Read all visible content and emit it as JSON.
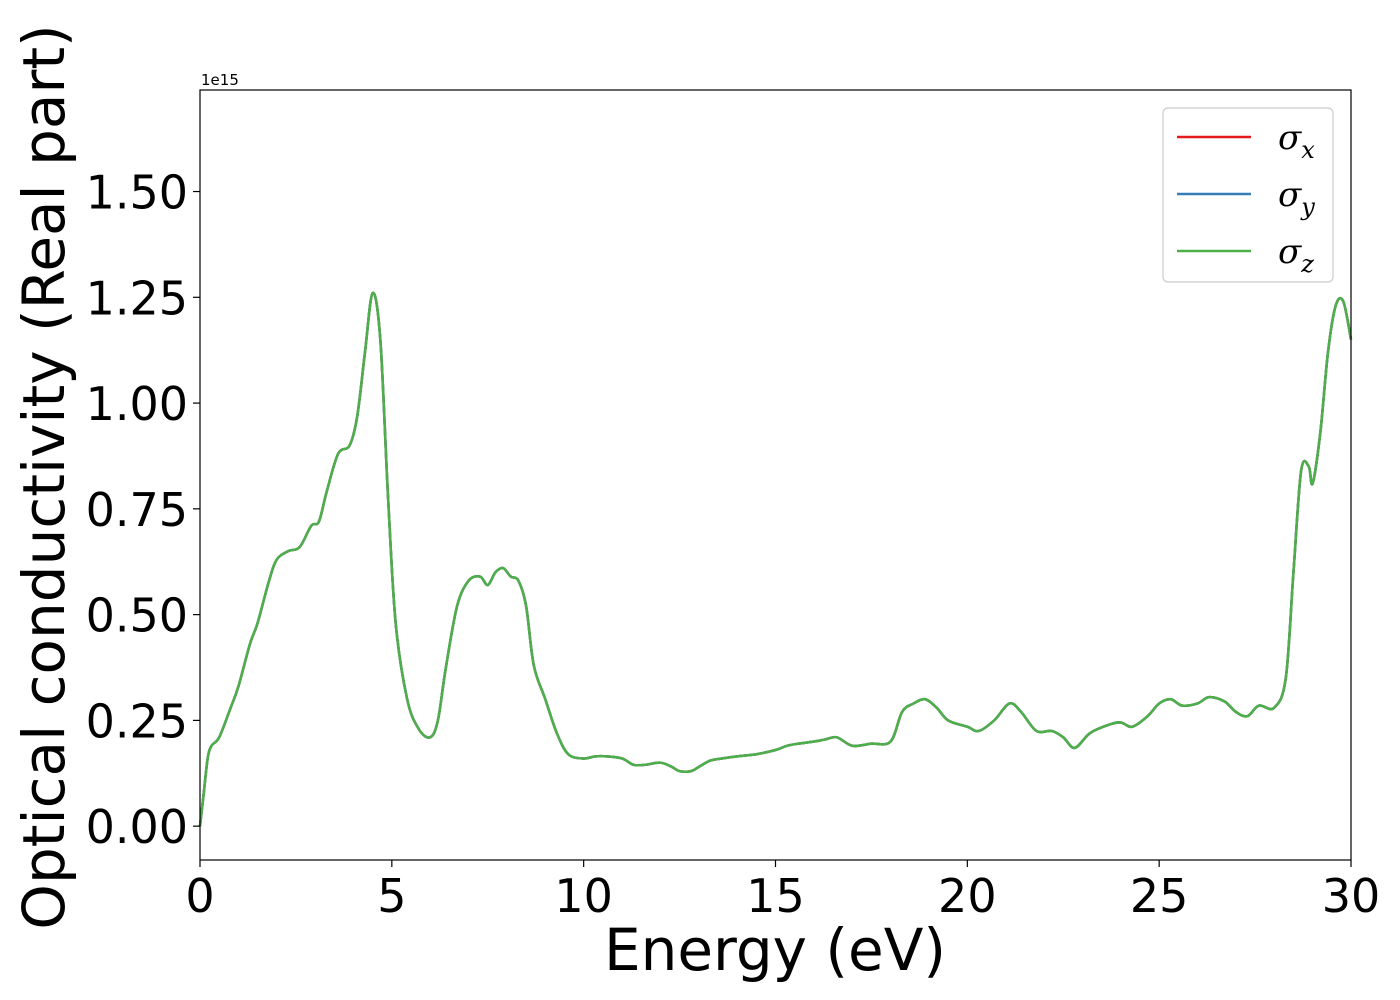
{
  "chart_data": {
    "type": "line",
    "title": "",
    "xlabel": "Energy (eV)",
    "ylabel": "Optical conductivity (Real part)",
    "y_offset_label": "1e15",
    "xlim": [
      0,
      30
    ],
    "ylim": [
      -0.08,
      1.74
    ],
    "x_ticks": [
      0,
      5,
      10,
      15,
      20,
      25,
      30
    ],
    "x_tick_labels": [
      "0",
      "5",
      "10",
      "15",
      "20",
      "25",
      "30"
    ],
    "y_ticks": [
      0.0,
      0.25,
      0.5,
      0.75,
      1.0,
      1.25,
      1.5
    ],
    "y_tick_labels": [
      "0.00",
      "0.25",
      "0.50",
      "0.75",
      "1.00",
      "1.25",
      "1.50"
    ],
    "grid": false,
    "legend_position": "top-right",
    "series": [
      {
        "name": "σx",
        "symbol": "σ",
        "subscript": "x",
        "color": "#e41a1c",
        "x": [
          0,
          0.1,
          0.2,
          0.3,
          0.5,
          0.8,
          1.0,
          1.3,
          1.5,
          1.8,
          2.0,
          2.3,
          2.6,
          2.9,
          3.1,
          3.3,
          3.6,
          3.9,
          4.1,
          4.3,
          4.5,
          4.7,
          4.9,
          5.1,
          5.4,
          5.7,
          6.0,
          6.2,
          6.4,
          6.7,
          7.0,
          7.3,
          7.5,
          7.7,
          7.9,
          8.1,
          8.3,
          8.5,
          8.7,
          9.0,
          9.3,
          9.6,
          10.0,
          10.3,
          10.6,
          11.0,
          11.3,
          11.6,
          12.0,
          12.3,
          12.5,
          12.8,
          13.0,
          13.3,
          13.6,
          14.0,
          14.5,
          15.0,
          15.3,
          15.6,
          16.0,
          16.3,
          16.6,
          17.0,
          17.5,
          18.0,
          18.3,
          18.6,
          18.9,
          19.2,
          19.5,
          20.0,
          20.3,
          20.7,
          21.1,
          21.4,
          21.8,
          22.2,
          22.5,
          22.8,
          23.2,
          23.7,
          24.0,
          24.3,
          24.7,
          25.0,
          25.3,
          25.6,
          26.0,
          26.3,
          26.7,
          27.0,
          27.3,
          27.6,
          28.0,
          28.3,
          28.5,
          28.7,
          28.9,
          29.0,
          29.2,
          29.4,
          29.6,
          29.8,
          30.0
        ],
        "y": [
          0.0,
          0.08,
          0.16,
          0.19,
          0.21,
          0.28,
          0.33,
          0.43,
          0.48,
          0.58,
          0.63,
          0.65,
          0.66,
          0.71,
          0.72,
          0.79,
          0.88,
          0.9,
          0.97,
          1.12,
          1.26,
          1.15,
          0.78,
          0.48,
          0.3,
          0.23,
          0.21,
          0.25,
          0.37,
          0.52,
          0.58,
          0.59,
          0.57,
          0.6,
          0.61,
          0.59,
          0.58,
          0.52,
          0.38,
          0.3,
          0.22,
          0.17,
          0.16,
          0.165,
          0.165,
          0.16,
          0.145,
          0.145,
          0.15,
          0.14,
          0.13,
          0.13,
          0.14,
          0.155,
          0.16,
          0.165,
          0.17,
          0.18,
          0.19,
          0.195,
          0.2,
          0.205,
          0.21,
          0.19,
          0.195,
          0.2,
          0.27,
          0.29,
          0.3,
          0.28,
          0.25,
          0.235,
          0.225,
          0.25,
          0.29,
          0.27,
          0.225,
          0.225,
          0.21,
          0.185,
          0.22,
          0.24,
          0.245,
          0.235,
          0.26,
          0.29,
          0.3,
          0.285,
          0.29,
          0.305,
          0.295,
          0.27,
          0.26,
          0.285,
          0.28,
          0.35,
          0.6,
          0.84,
          0.85,
          0.81,
          0.93,
          1.12,
          1.23,
          1.24,
          1.15
        ]
      },
      {
        "name": "σy",
        "symbol": "σ",
        "subscript": "y",
        "color": "#377eb8",
        "x": [
          0,
          0.1,
          0.2,
          0.3,
          0.5,
          0.8,
          1.0,
          1.3,
          1.5,
          1.8,
          2.0,
          2.3,
          2.6,
          2.9,
          3.1,
          3.3,
          3.6,
          3.9,
          4.1,
          4.3,
          4.5,
          4.7,
          4.9,
          5.1,
          5.4,
          5.7,
          6.0,
          6.2,
          6.4,
          6.7,
          7.0,
          7.3,
          7.5,
          7.7,
          7.9,
          8.1,
          8.3,
          8.5,
          8.7,
          9.0,
          9.3,
          9.6,
          10.0,
          10.3,
          10.6,
          11.0,
          11.3,
          11.6,
          12.0,
          12.3,
          12.5,
          12.8,
          13.0,
          13.3,
          13.6,
          14.0,
          14.5,
          15.0,
          15.3,
          15.6,
          16.0,
          16.3,
          16.6,
          17.0,
          17.5,
          18.0,
          18.3,
          18.6,
          18.9,
          19.2,
          19.5,
          20.0,
          20.3,
          20.7,
          21.1,
          21.4,
          21.8,
          22.2,
          22.5,
          22.8,
          23.2,
          23.7,
          24.0,
          24.3,
          24.7,
          25.0,
          25.3,
          25.6,
          26.0,
          26.3,
          26.7,
          27.0,
          27.3,
          27.6,
          28.0,
          28.3,
          28.5,
          28.7,
          28.9,
          29.0,
          29.2,
          29.4,
          29.6,
          29.8,
          30.0
        ],
        "y": [
          0.0,
          0.08,
          0.16,
          0.19,
          0.21,
          0.28,
          0.33,
          0.43,
          0.48,
          0.58,
          0.63,
          0.65,
          0.66,
          0.71,
          0.72,
          0.79,
          0.88,
          0.9,
          0.97,
          1.12,
          1.26,
          1.15,
          0.78,
          0.48,
          0.3,
          0.23,
          0.21,
          0.25,
          0.37,
          0.52,
          0.58,
          0.59,
          0.57,
          0.6,
          0.61,
          0.59,
          0.58,
          0.52,
          0.38,
          0.3,
          0.22,
          0.17,
          0.16,
          0.165,
          0.165,
          0.16,
          0.145,
          0.145,
          0.15,
          0.14,
          0.13,
          0.13,
          0.14,
          0.155,
          0.16,
          0.165,
          0.17,
          0.18,
          0.19,
          0.195,
          0.2,
          0.205,
          0.21,
          0.19,
          0.195,
          0.2,
          0.27,
          0.29,
          0.3,
          0.28,
          0.25,
          0.235,
          0.225,
          0.25,
          0.29,
          0.27,
          0.225,
          0.225,
          0.21,
          0.185,
          0.22,
          0.24,
          0.245,
          0.235,
          0.26,
          0.29,
          0.3,
          0.285,
          0.29,
          0.305,
          0.295,
          0.27,
          0.26,
          0.285,
          0.28,
          0.35,
          0.6,
          0.84,
          0.85,
          0.81,
          0.93,
          1.12,
          1.23,
          1.24,
          1.15
        ]
      },
      {
        "name": "σz",
        "symbol": "σ",
        "subscript": "z",
        "color": "#4daf4a",
        "x": [
          0,
          0.1,
          0.2,
          0.3,
          0.5,
          0.8,
          1.0,
          1.3,
          1.5,
          1.8,
          2.0,
          2.3,
          2.6,
          2.9,
          3.1,
          3.3,
          3.6,
          3.9,
          4.1,
          4.3,
          4.5,
          4.7,
          4.9,
          5.1,
          5.4,
          5.7,
          6.0,
          6.2,
          6.4,
          6.7,
          7.0,
          7.3,
          7.5,
          7.7,
          7.9,
          8.1,
          8.3,
          8.5,
          8.7,
          9.0,
          9.3,
          9.6,
          10.0,
          10.3,
          10.6,
          11.0,
          11.3,
          11.6,
          12.0,
          12.3,
          12.5,
          12.8,
          13.0,
          13.3,
          13.6,
          14.0,
          14.5,
          15.0,
          15.3,
          15.6,
          16.0,
          16.3,
          16.6,
          17.0,
          17.5,
          18.0,
          18.3,
          18.6,
          18.9,
          19.2,
          19.5,
          20.0,
          20.3,
          20.7,
          21.1,
          21.4,
          21.8,
          22.2,
          22.5,
          22.8,
          23.2,
          23.7,
          24.0,
          24.3,
          24.7,
          25.0,
          25.3,
          25.6,
          26.0,
          26.3,
          26.7,
          27.0,
          27.3,
          27.6,
          28.0,
          28.3,
          28.5,
          28.7,
          28.9,
          29.0,
          29.2,
          29.4,
          29.6,
          29.8,
          30.0
        ],
        "y": [
          0.0,
          0.08,
          0.16,
          0.19,
          0.21,
          0.28,
          0.33,
          0.43,
          0.48,
          0.58,
          0.63,
          0.65,
          0.66,
          0.71,
          0.72,
          0.79,
          0.88,
          0.9,
          0.97,
          1.12,
          1.26,
          1.15,
          0.78,
          0.48,
          0.3,
          0.23,
          0.21,
          0.25,
          0.37,
          0.52,
          0.58,
          0.59,
          0.57,
          0.6,
          0.61,
          0.59,
          0.58,
          0.52,
          0.38,
          0.3,
          0.22,
          0.17,
          0.16,
          0.165,
          0.165,
          0.16,
          0.145,
          0.145,
          0.15,
          0.14,
          0.13,
          0.13,
          0.14,
          0.155,
          0.16,
          0.165,
          0.17,
          0.18,
          0.19,
          0.195,
          0.2,
          0.205,
          0.21,
          0.19,
          0.195,
          0.2,
          0.27,
          0.29,
          0.3,
          0.28,
          0.25,
          0.235,
          0.225,
          0.25,
          0.29,
          0.27,
          0.225,
          0.225,
          0.21,
          0.185,
          0.22,
          0.24,
          0.245,
          0.235,
          0.26,
          0.29,
          0.3,
          0.285,
          0.29,
          0.305,
          0.295,
          0.27,
          0.26,
          0.285,
          0.28,
          0.35,
          0.6,
          0.84,
          0.85,
          0.81,
          0.93,
          1.12,
          1.23,
          1.24,
          1.15
        ]
      }
    ]
  }
}
